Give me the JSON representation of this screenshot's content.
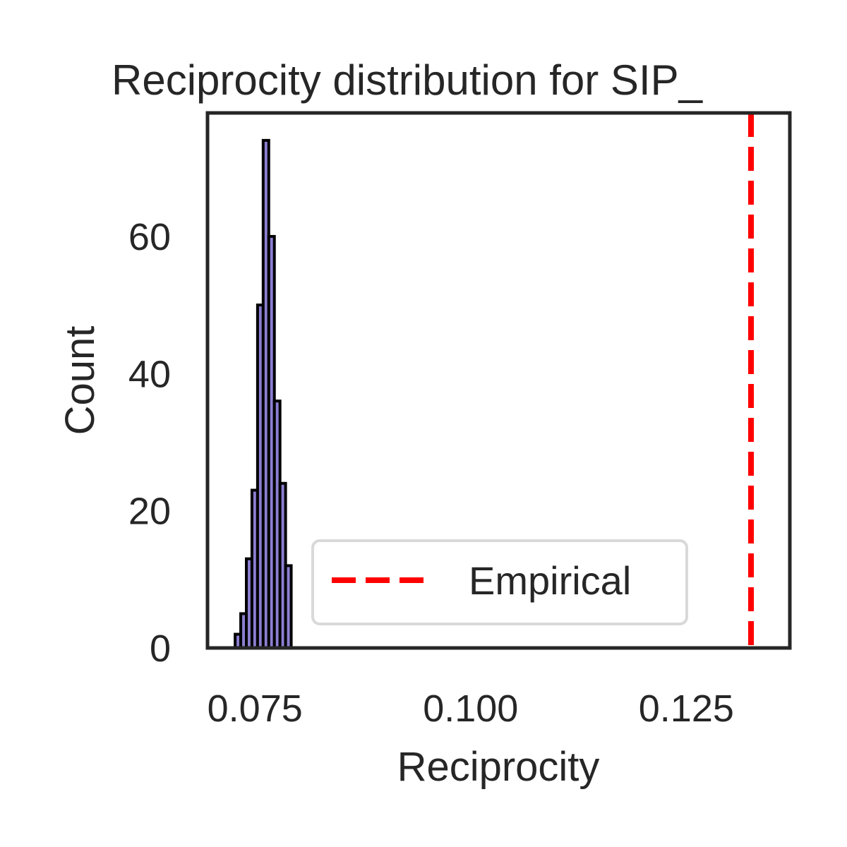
{
  "chart_data": {
    "type": "histogram",
    "title": "Reciprocity distribution for SIP_",
    "xlabel": "Reciprocity",
    "ylabel": "Count",
    "xlim": [
      0.0695,
      0.137
    ],
    "ylim": [
      0,
      78
    ],
    "x_ticks": [
      0.075,
      0.1,
      0.125
    ],
    "x_tick_labels": [
      "0.075",
      "0.100",
      "0.125"
    ],
    "y_ticks": [
      0,
      20,
      40,
      60
    ],
    "y_tick_labels": [
      "0",
      "20",
      "40",
      "60"
    ],
    "grid": false,
    "bins": [
      {
        "x0": 0.0727,
        "x1": 0.07335,
        "count": 2
      },
      {
        "x0": 0.07335,
        "x1": 0.074,
        "count": 5
      },
      {
        "x0": 0.074,
        "x1": 0.07465,
        "count": 13
      },
      {
        "x0": 0.07465,
        "x1": 0.0753,
        "count": 23
      },
      {
        "x0": 0.0753,
        "x1": 0.07595,
        "count": 50
      },
      {
        "x0": 0.07595,
        "x1": 0.0766,
        "count": 74
      },
      {
        "x0": 0.0766,
        "x1": 0.07725,
        "count": 60
      },
      {
        "x0": 0.07725,
        "x1": 0.0779,
        "count": 36
      },
      {
        "x0": 0.0779,
        "x1": 0.07855,
        "count": 24
      },
      {
        "x0": 0.07855,
        "x1": 0.0792,
        "count": 12
      }
    ],
    "bar_color": "#8c7fd1",
    "bar_edge_color": "#000000",
    "empirical_value": 0.1325,
    "empirical_line_color": "#ff0000",
    "legend": {
      "placement": "lower-center",
      "entries": [
        {
          "label": "Empirical",
          "style": "dashed",
          "color": "#ff0000"
        }
      ]
    }
  }
}
